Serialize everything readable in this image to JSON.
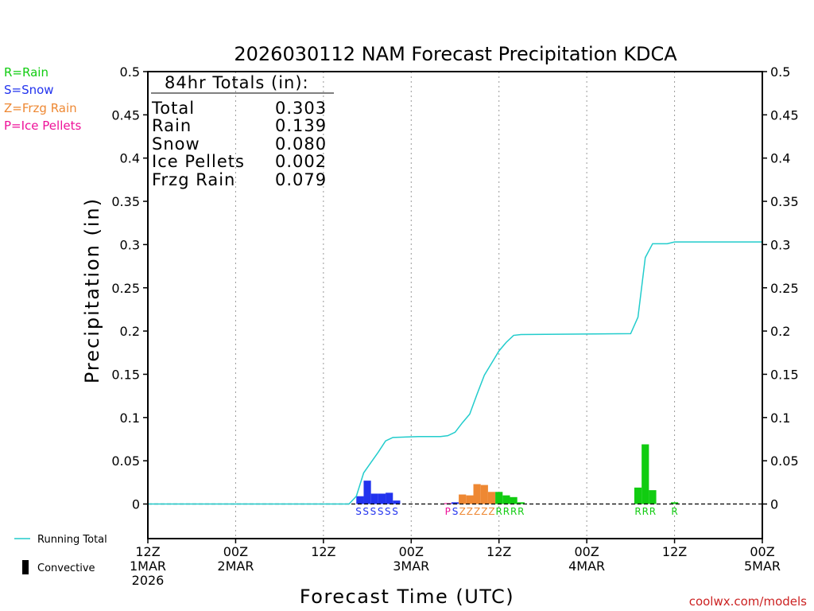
{
  "chart_data": {
    "type": "bar",
    "title": "2026030112 NAM Forecast Precipitation KDCA",
    "xlabel": "Forecast Time (UTC)",
    "ylabel": "Precipitation (in)",
    "ylim": [
      -0.04,
      0.5
    ],
    "y_ticks": [
      0,
      0.05,
      0.1,
      0.15,
      0.2,
      0.25,
      0.3,
      0.35,
      0.4,
      0.45,
      0.5
    ],
    "y_tick_labels": [
      "0",
      "0.05",
      "0.1",
      "0.15",
      "0.2",
      "0.25",
      "0.3",
      "0.35",
      "0.4",
      "0.45",
      "0.5"
    ],
    "x_range_hours": [
      0,
      84
    ],
    "x_ticks": [
      {
        "hour": 0,
        "label1": "12Z",
        "label2": "1MAR",
        "label3": "2026"
      },
      {
        "hour": 12,
        "label1": "00Z",
        "label2": "2MAR",
        "label3": ""
      },
      {
        "hour": 24,
        "label1": "12Z",
        "label2": "",
        "label3": ""
      },
      {
        "hour": 36,
        "label1": "00Z",
        "label2": "3MAR",
        "label3": ""
      },
      {
        "hour": 48,
        "label1": "12Z",
        "label2": "",
        "label3": ""
      },
      {
        "hour": 60,
        "label1": "00Z",
        "label2": "4MAR",
        "label3": ""
      },
      {
        "hour": 72,
        "label1": "12Z",
        "label2": "",
        "label3": ""
      },
      {
        "hour": 84,
        "label1": "00Z",
        "label2": "5MAR",
        "label3": ""
      }
    ],
    "grid": "vertical dotted at each tick",
    "ptype_colors": {
      "S": "#2233ee",
      "Z": "#ee8833",
      "P": "#ee1199",
      "R": "#11cc11"
    },
    "bars": [
      {
        "start": 28.5,
        "end": 29.5,
        "value": 0.009,
        "ptype": "S"
      },
      {
        "start": 29.5,
        "end": 30.5,
        "value": 0.027,
        "ptype": "S"
      },
      {
        "start": 30.5,
        "end": 31.5,
        "value": 0.012,
        "ptype": "S"
      },
      {
        "start": 31.5,
        "end": 32.5,
        "value": 0.012,
        "ptype": "S"
      },
      {
        "start": 32.5,
        "end": 33.5,
        "value": 0.013,
        "ptype": "S"
      },
      {
        "start": 33.5,
        "end": 34.5,
        "value": 0.004,
        "ptype": "S"
      },
      {
        "start": 40.5,
        "end": 41.5,
        "value": 0.001,
        "ptype": "P"
      },
      {
        "start": 41.5,
        "end": 42.5,
        "value": 0.002,
        "ptype": "S"
      },
      {
        "start": 42.5,
        "end": 43.5,
        "value": 0.011,
        "ptype": "Z"
      },
      {
        "start": 43.5,
        "end": 44.5,
        "value": 0.01,
        "ptype": "Z"
      },
      {
        "start": 44.5,
        "end": 45.5,
        "value": 0.023,
        "ptype": "Z"
      },
      {
        "start": 45.5,
        "end": 46.5,
        "value": 0.022,
        "ptype": "Z"
      },
      {
        "start": 46.5,
        "end": 47.5,
        "value": 0.014,
        "ptype": "Z"
      },
      {
        "start": 47.5,
        "end": 48.5,
        "value": 0.014,
        "ptype": "R"
      },
      {
        "start": 48.5,
        "end": 49.5,
        "value": 0.01,
        "ptype": "R"
      },
      {
        "start": 49.5,
        "end": 50.5,
        "value": 0.008,
        "ptype": "R"
      },
      {
        "start": 50.5,
        "end": 51.5,
        "value": 0.002,
        "ptype": "R"
      },
      {
        "start": 66.5,
        "end": 67.5,
        "value": 0.019,
        "ptype": "R"
      },
      {
        "start": 67.5,
        "end": 68.5,
        "value": 0.069,
        "ptype": "R"
      },
      {
        "start": 68.5,
        "end": 69.5,
        "value": 0.016,
        "ptype": "R"
      },
      {
        "start": 71.5,
        "end": 72.5,
        "value": 0.002,
        "ptype": "R"
      }
    ],
    "ptype_labels": [
      {
        "hour": 28.8,
        "text": "S"
      },
      {
        "hour": 29.8,
        "text": "S"
      },
      {
        "hour": 30.8,
        "text": "S"
      },
      {
        "hour": 31.8,
        "text": "S"
      },
      {
        "hour": 32.8,
        "text": "S"
      },
      {
        "hour": 33.8,
        "text": "S"
      },
      {
        "hour": 41.0,
        "text": "P"
      },
      {
        "hour": 42.0,
        "text": "S"
      },
      {
        "hour": 43.0,
        "text": "Z"
      },
      {
        "hour": 44.0,
        "text": "Z"
      },
      {
        "hour": 45.0,
        "text": "Z"
      },
      {
        "hour": 46.0,
        "text": "Z"
      },
      {
        "hour": 47.0,
        "text": "Z"
      },
      {
        "hour": 48.0,
        "text": "R"
      },
      {
        "hour": 49.0,
        "text": "R"
      },
      {
        "hour": 50.0,
        "text": "R"
      },
      {
        "hour": 51.0,
        "text": "R"
      },
      {
        "hour": 67.0,
        "text": "R"
      },
      {
        "hour": 68.0,
        "text": "R"
      },
      {
        "hour": 69.0,
        "text": "R"
      },
      {
        "hour": 72.0,
        "text": "R"
      }
    ],
    "running_total": {
      "name": "Running Total",
      "color": "#22cccc",
      "points": [
        [
          0,
          0
        ],
        [
          27.5,
          0
        ],
        [
          28.5,
          0.009
        ],
        [
          29.5,
          0.036
        ],
        [
          30.5,
          0.048
        ],
        [
          31.5,
          0.06
        ],
        [
          32.5,
          0.073
        ],
        [
          33.5,
          0.077
        ],
        [
          37,
          0.078
        ],
        [
          40,
          0.078
        ],
        [
          41,
          0.079
        ],
        [
          42,
          0.083
        ],
        [
          43,
          0.094
        ],
        [
          44,
          0.104
        ],
        [
          45,
          0.127
        ],
        [
          46,
          0.149
        ],
        [
          47,
          0.163
        ],
        [
          48,
          0.177
        ],
        [
          49,
          0.187
        ],
        [
          50,
          0.195
        ],
        [
          51,
          0.196
        ],
        [
          66,
          0.197
        ],
        [
          67,
          0.216
        ],
        [
          68,
          0.285
        ],
        [
          69,
          0.301
        ],
        [
          71,
          0.301
        ],
        [
          72,
          0.303
        ],
        [
          84,
          0.303
        ]
      ]
    },
    "totals_box": {
      "title": "84hr Totals (in):",
      "rows": [
        {
          "label": "Total",
          "value": "0.303"
        },
        {
          "label": "Rain",
          "value": "0.139"
        },
        {
          "label": "Snow",
          "value": "0.080"
        },
        {
          "label": "Ice Pellets",
          "value": "0.002"
        },
        {
          "label": "Frzg Rain",
          "value": "0.079"
        }
      ]
    },
    "ptype_legend": [
      {
        "text": "R=Rain",
        "color": "#11cc11"
      },
      {
        "text": "S=Snow",
        "color": "#2233ee"
      },
      {
        "text": "Z=Frzg Rain",
        "color": "#ee8833"
      },
      {
        "text": "P=Ice Pellets",
        "color": "#ee1199"
      }
    ],
    "legend": {
      "running_total": "Running Total",
      "convective": "Convective"
    },
    "credit": "coolwx.com/models"
  }
}
